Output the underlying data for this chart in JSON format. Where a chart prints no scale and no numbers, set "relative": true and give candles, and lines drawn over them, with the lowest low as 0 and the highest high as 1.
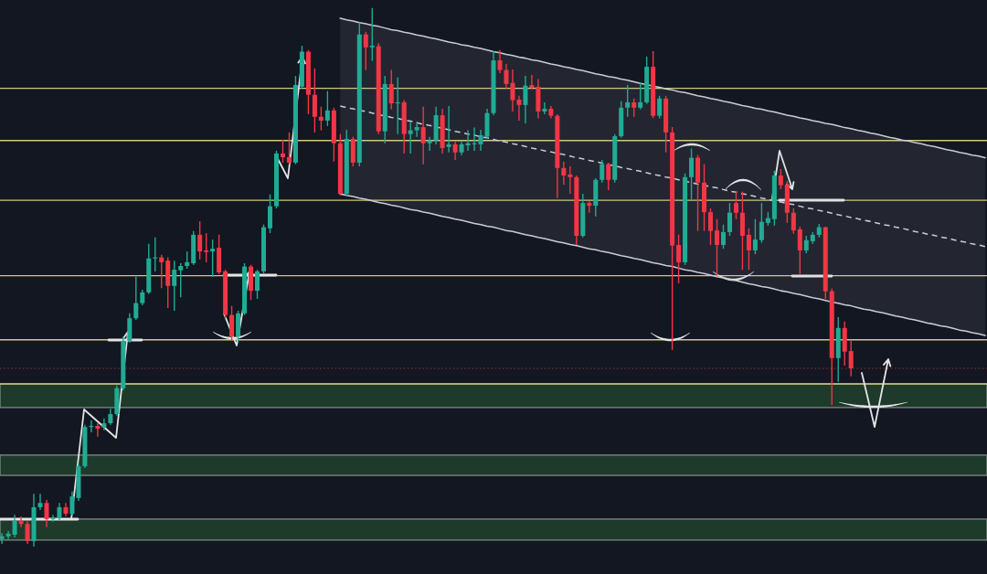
{
  "chart_data": {
    "type": "candlestick",
    "relative": true,
    "tick_labels": false,
    "categories": [
      null,
      null,
      null,
      null,
      null,
      null,
      null,
      null,
      null,
      null,
      null,
      null,
      null,
      null,
      null,
      null,
      null,
      null,
      null,
      null,
      null,
      null,
      null,
      null,
      null,
      null,
      null,
      null,
      null,
      null,
      null,
      null,
      null,
      null,
      null,
      null,
      null,
      null,
      null,
      null,
      null,
      null,
      null,
      null,
      null,
      null,
      null,
      null,
      null,
      null,
      null,
      null,
      null,
      null,
      null,
      null,
      null,
      null,
      null,
      null,
      null,
      null,
      null,
      null,
      null,
      null,
      null,
      null,
      null,
      null,
      null,
      null,
      null,
      null,
      null,
      null,
      null,
      null,
      null,
      null,
      null,
      null,
      null,
      null,
      null,
      null,
      null,
      null,
      null,
      null,
      null,
      null,
      null,
      null,
      null,
      null,
      null,
      null,
      null,
      null,
      null,
      null,
      null,
      null,
      null,
      null,
      null,
      null,
      null,
      null,
      null,
      null,
      null,
      null,
      null,
      null,
      null,
      null,
      null,
      null,
      null,
      null,
      null,
      null,
      null,
      null,
      null,
      null,
      null,
      null,
      null,
      null,
      null,
      null,
      null,
      null,
      null,
      null,
      null,
      null,
      null,
      null,
      null,
      null,
      null,
      null,
      null,
      null,
      null,
      null,
      null,
      null,
      null,
      null,
      null
    ],
    "ohlc": [
      [
        0.014,
        0.025,
        0.005,
        0.019
      ],
      [
        0.019,
        0.029,
        0.014,
        0.024
      ],
      [
        0.022,
        0.059,
        0.017,
        0.048
      ],
      [
        0.048,
        0.056,
        0.036,
        0.042
      ],
      [
        0.042,
        0.048,
        0.005,
        0.01
      ],
      [
        0.01,
        0.098,
        0,
        0.073
      ],
      [
        0.073,
        0.098,
        0.068,
        0.081
      ],
      [
        0.081,
        0.087,
        0.036,
        0.051
      ],
      [
        0.051,
        0.059,
        0.046,
        0.053
      ],
      [
        0.053,
        0.081,
        0.049,
        0.073
      ],
      [
        0.073,
        0.081,
        0.056,
        0.061
      ],
      [
        0.061,
        0.102,
        0.058,
        0.093
      ],
      [
        0.09,
        0.154,
        0.085,
        0.149
      ],
      [
        0.149,
        0.226,
        0.146,
        0.222
      ],
      [
        0.222,
        0.234,
        0.212,
        0.224
      ],
      [
        0.224,
        0.229,
        0.204,
        0.219
      ],
      [
        0.221,
        0.238,
        0.216,
        0.229
      ],
      [
        0.229,
        0.256,
        0.226,
        0.246
      ],
      [
        0.246,
        0.299,
        0.243,
        0.294
      ],
      [
        0.294,
        0.39,
        0.29,
        0.382
      ],
      [
        0.382,
        0.433,
        0.379,
        0.424
      ],
      [
        0.424,
        0.501,
        0.421,
        0.452
      ],
      [
        0.452,
        0.477,
        0.448,
        0.472
      ],
      [
        0.472,
        0.562,
        0.469,
        0.535
      ],
      [
        0.535,
        0.574,
        0.511,
        0.537
      ],
      [
        0.537,
        0.542,
        0.48,
        0.528
      ],
      [
        0.531,
        0.537,
        0.443,
        0.484
      ],
      [
        0.484,
        0.531,
        0.438,
        0.514
      ],
      [
        0.513,
        0.526,
        0.463,
        0.521
      ],
      [
        0.521,
        0.548,
        0.516,
        0.528
      ],
      [
        0.526,
        0.586,
        0.523,
        0.579
      ],
      [
        0.579,
        0.604,
        0.533,
        0.548
      ],
      [
        0.55,
        0.582,
        0.528,
        0.547
      ],
      [
        0.548,
        0.57,
        0.501,
        0.553
      ],
      [
        0.555,
        0.579,
        0.506,
        0.509
      ],
      [
        0.511,
        0.514,
        0.424,
        0.43
      ],
      [
        0.43,
        0.447,
        0.382,
        0.39
      ],
      [
        0.39,
        0.438,
        0.379,
        0.433
      ],
      [
        0.433,
        0.526,
        0.43,
        0.52
      ],
      [
        0.52,
        0.523,
        0.458,
        0.475
      ],
      [
        0.475,
        0.514,
        0.46,
        0.511
      ],
      [
        0.511,
        0.598,
        0.506,
        0.593
      ],
      [
        0.591,
        0.654,
        0.582,
        0.632
      ],
      [
        0.632,
        0.735,
        0.628,
        0.73
      ],
      [
        0.73,
        0.756,
        0.713,
        0.723
      ],
      [
        0.723,
        0.769,
        0.71,
        0.713
      ],
      [
        0.713,
        0.874,
        0.71,
        0.857
      ],
      [
        0.854,
        0.93,
        0.851,
        0.919
      ],
      [
        0.919,
        0.922,
        0.803,
        0.839
      ],
      [
        0.839,
        0.888,
        0.769,
        0.798
      ],
      [
        0.798,
        0.817,
        0.773,
        0.791
      ],
      [
        0.791,
        0.846,
        0.781,
        0.81
      ],
      [
        0.81,
        0.815,
        0.715,
        0.749
      ],
      [
        0.749,
        0.766,
        0.652,
        0.655
      ],
      [
        0.655,
        0.774,
        0.652,
        0.757
      ],
      [
        0.757,
        0.761,
        0.706,
        0.713
      ],
      [
        0.713,
        0.973,
        0.706,
        0.951
      ],
      [
        0.951,
        0.956,
        0.885,
        0.927
      ],
      [
        0.927,
        1,
        0.902,
        0.93
      ],
      [
        0.929,
        0.935,
        0.766,
        0.771
      ],
      [
        0.771,
        0.874,
        0.749,
        0.859
      ],
      [
        0.859,
        0.885,
        0.812,
        0.823
      ],
      [
        0.823,
        0.871,
        0.766,
        0.825
      ],
      [
        0.825,
        0.829,
        0.73,
        0.766
      ],
      [
        0.766,
        0.789,
        0.73,
        0.773
      ],
      [
        0.773,
        0.789,
        0.761,
        0.779
      ],
      [
        0.779,
        0.817,
        0.71,
        0.749
      ],
      [
        0.749,
        0.761,
        0.735,
        0.754
      ],
      [
        0.754,
        0.817,
        0.747,
        0.801
      ],
      [
        0.801,
        0.813,
        0.73,
        0.74
      ],
      [
        0.742,
        0.818,
        0.732,
        0.747
      ],
      [
        0.747,
        0.752,
        0.718,
        0.732
      ],
      [
        0.732,
        0.752,
        0.727,
        0.747
      ],
      [
        0.745,
        0.773,
        0.735,
        0.749
      ],
      [
        0.747,
        0.778,
        0.735,
        0.749
      ],
      [
        0.747,
        0.774,
        0.735,
        0.764
      ],
      [
        0.761,
        0.813,
        0.757,
        0.805
      ],
      [
        0.805,
        0.92,
        0.801,
        0.903
      ],
      [
        0.903,
        0.922,
        0.879,
        0.885
      ],
      [
        0.885,
        0.896,
        0.849,
        0.859
      ],
      [
        0.861,
        0.886,
        0.808,
        0.829
      ],
      [
        0.83,
        0.837,
        0.791,
        0.82
      ],
      [
        0.82,
        0.874,
        0.786,
        0.856
      ],
      [
        0.857,
        0.876,
        0.849,
        0.852
      ],
      [
        0.854,
        0.868,
        0.795,
        0.808
      ],
      [
        0.808,
        0.825,
        0.803,
        0.813
      ],
      [
        0.813,
        0.818,
        0.795,
        0.8
      ],
      [
        0.8,
        0.803,
        0.647,
        0.703
      ],
      [
        0.703,
        0.715,
        0.672,
        0.689
      ],
      [
        0.691,
        0.706,
        0.655,
        0.686
      ],
      [
        0.686,
        0.689,
        0.56,
        0.577
      ],
      [
        0.577,
        0.655,
        0.574,
        0.638
      ],
      [
        0.638,
        0.642,
        0.62,
        0.633
      ],
      [
        0.633,
        0.684,
        0.613,
        0.681
      ],
      [
        0.681,
        0.718,
        0.676,
        0.71
      ],
      [
        0.71,
        0.713,
        0.662,
        0.681
      ],
      [
        0.681,
        0.766,
        0.676,
        0.762
      ],
      [
        0.762,
        0.827,
        0.759,
        0.815
      ],
      [
        0.815,
        0.857,
        0.798,
        0.825
      ],
      [
        0.825,
        0.832,
        0.798,
        0.815
      ],
      [
        0.815,
        0.862,
        0.812,
        0.825
      ],
      [
        0.825,
        0.91,
        0.822,
        0.891
      ],
      [
        0.891,
        0.92,
        0.796,
        0.8
      ],
      [
        0.8,
        0.837,
        0.795,
        0.832
      ],
      [
        0.832,
        0.837,
        0.732,
        0.769
      ],
      [
        0.769,
        0.779,
        0.365,
        0.559
      ],
      [
        0.56,
        0.579,
        0.489,
        0.528
      ],
      [
        0.528,
        0.693,
        0.523,
        0.686
      ],
      [
        0.686,
        0.739,
        0.645,
        0.722
      ],
      [
        0.722,
        0.727,
        0.586,
        0.676
      ],
      [
        0.676,
        0.71,
        0.586,
        0.621
      ],
      [
        0.621,
        0.628,
        0.56,
        0.586
      ],
      [
        0.587,
        0.608,
        0.503,
        0.56
      ],
      [
        0.56,
        0.598,
        0.553,
        0.584
      ],
      [
        0.584,
        0.638,
        0.577,
        0.62
      ],
      [
        0.638,
        0.659,
        0.608,
        0.62
      ],
      [
        0.62,
        0.659,
        0.514,
        0.577
      ],
      [
        0.579,
        0.591,
        0.514,
        0.55
      ],
      [
        0.55,
        0.608,
        0.543,
        0.57
      ],
      [
        0.569,
        0.638,
        0.564,
        0.603
      ],
      [
        0.601,
        0.621,
        0.596,
        0.61
      ],
      [
        0.608,
        0.698,
        0.596,
        0.689
      ],
      [
        0.689,
        0.701,
        0.664,
        0.671
      ],
      [
        0.672,
        0.679,
        0.601,
        0.62
      ],
      [
        0.62,
        0.628,
        0.581,
        0.587
      ],
      [
        0.589,
        0.594,
        0.506,
        0.55
      ],
      [
        0.55,
        0.577,
        0.545,
        0.569
      ],
      [
        0.567,
        0.584,
        0.562,
        0.579
      ],
      [
        0.579,
        0.599,
        0.574,
        0.593
      ],
      [
        0.593,
        0.594,
        0.46,
        0.474
      ],
      [
        0.474,
        0.479,
        0.263,
        0.35
      ],
      [
        0.35,
        0.426,
        0.306,
        0.406
      ],
      [
        0.406,
        0.418,
        0.336,
        0.362
      ],
      [
        0.363,
        0.382,
        0.316,
        0.331
      ],
      null,
      null,
      null,
      null,
      null,
      null,
      null,
      null,
      null,
      null,
      null,
      null,
      null,
      null,
      null,
      null,
      null,
      null,
      null,
      null,
      null
    ],
    "colors": [
      "#22ab94",
      "#22ab94",
      "#22ab94",
      "#f23645",
      "#f23645",
      "#22ab94",
      "#22ab94",
      "#f23645",
      "#22ab94",
      "#22ab94",
      "#f23645",
      "#22ab94",
      "#22ab94",
      "#22ab94",
      "#22ab94",
      "#f23645",
      "#22ab94",
      "#22ab94",
      "#22ab94",
      "#22ab94",
      "#22ab94",
      "#22ab94",
      "#22ab94",
      "#22ab94",
      "#22ab94",
      "#f23645",
      "#f23645",
      "#22ab94",
      "#22ab94",
      "#22ab94",
      "#22ab94",
      "#f23645",
      "#f23645",
      "#22ab94",
      "#f23645",
      "#f23645",
      "#f23645",
      "#22ab94",
      "#22ab94",
      "#f23645",
      "#22ab94",
      "#22ab94",
      "#22ab94",
      "#22ab94",
      "#f23645",
      "#f23645",
      "#22ab94",
      "#22ab94",
      "#f23645",
      "#f23645",
      "#f23645",
      "#22ab94",
      "#f23645",
      "#f23645",
      "#22ab94",
      "#f23645",
      "#22ab94",
      "#f23645",
      "#22ab94",
      "#f23645",
      "#22ab94",
      "#f23645",
      "#22ab94",
      "#f23645",
      "#22ab94",
      "#22ab94",
      "#f23645",
      "#22ab94",
      "#22ab94",
      "#f23645",
      "#22ab94",
      "#f23645",
      "#22ab94",
      "#22ab94",
      "#22ab94",
      "#22ab94",
      "#22ab94",
      "#22ab94",
      "#f23645",
      "#f23645",
      "#f23645",
      "#f23645",
      "#22ab94",
      "#f23645",
      "#f23645",
      "#22ab94",
      "#f23645",
      "#f23645",
      "#f23645",
      "#f23645",
      "#f23645",
      "#22ab94",
      "#f23645",
      "#22ab94",
      "#22ab94",
      "#f23645",
      "#22ab94",
      "#22ab94",
      "#22ab94",
      "#f23645",
      "#22ab94",
      "#22ab94",
      "#f23645",
      "#22ab94",
      "#f23645",
      "#f23645",
      "#f23645",
      "#22ab94",
      "#22ab94",
      "#f23645",
      "#f23645",
      "#f23645",
      "#f23645",
      "#22ab94",
      "#22ab94",
      "#f23645",
      "#f23645",
      "#f23645",
      "#22ab94",
      "#22ab94",
      "#22ab94",
      "#22ab94",
      "#f23645",
      "#f23645",
      "#f23645",
      "#f23645",
      "#22ab94",
      "#22ab94",
      "#22ab94",
      "#f23645",
      "#f23645",
      "#22ab94",
      "#f23645",
      "#f23645",
      null,
      null,
      null,
      null,
      null,
      null,
      null,
      null,
      null,
      null,
      null,
      null,
      null,
      null,
      null,
      null,
      null,
      null,
      null,
      null,
      null
    ],
    "series": [
      {
        "type": "line",
        "color": "#c9ccd4",
        "values": [
          null,
          null,
          null,
          null,
          null,
          null,
          null,
          null,
          null,
          null,
          null,
          null,
          null,
          null,
          null,
          null,
          null,
          null,
          null,
          null,
          null,
          null,
          null,
          null,
          null,
          null,
          null,
          null,
          null,
          null,
          null,
          null,
          null,
          null,
          null,
          null,
          null,
          null,
          null,
          null,
          null,
          null,
          null,
          null,
          null,
          null,
          null,
          null,
          null,
          null,
          null,
          null,
          null,
          0.981,
          0.978,
          0.976,
          0.973,
          0.971,
          0.968,
          0.966,
          0.963,
          0.96,
          0.958,
          0.955,
          0.953,
          0.95,
          0.948,
          0.945,
          0.943,
          0.94,
          0.937,
          0.935,
          0.932,
          0.93,
          0.927,
          0.925,
          0.922,
          0.919,
          0.917,
          0.914,
          0.912,
          0.909,
          0.907,
          0.904,
          0.902,
          0.899,
          0.896,
          0.894,
          0.891,
          0.889,
          0.886,
          0.884,
          0.881,
          0.878,
          0.876,
          0.873,
          0.871,
          0.868,
          0.866,
          0.863,
          0.86,
          0.858,
          0.855,
          0.853,
          0.85,
          0.848,
          0.845,
          0.843,
          0.84,
          0.837,
          0.835,
          0.832,
          0.83,
          0.827,
          0.825,
          0.822,
          0.819,
          0.817,
          0.814,
          0.812,
          0.809,
          0.807,
          0.804,
          0.801,
          0.799,
          0.796,
          0.794,
          0.791,
          0.789,
          0.786,
          0.784,
          0.781,
          0.778,
          0.776,
          0.773,
          0.771,
          0.768,
          0.766,
          0.763,
          0.76,
          0.758,
          0.755,
          0.753,
          0.75,
          0.748,
          0.745,
          0.743,
          0.74,
          0.737,
          0.735,
          0.732,
          0.73,
          0.727,
          0.725,
          0.722
        ]
      },
      {
        "type": "line",
        "color": "#c9ccd4",
        "values": [
          null,
          null,
          null,
          null,
          null,
          null,
          null,
          null,
          null,
          null,
          null,
          null,
          null,
          null,
          null,
          null,
          null,
          null,
          null,
          null,
          null,
          null,
          null,
          null,
          null,
          null,
          null,
          null,
          null,
          null,
          null,
          null,
          null,
          null,
          null,
          null,
          null,
          null,
          null,
          null,
          null,
          null,
          null,
          null,
          null,
          null,
          null,
          null,
          null,
          null,
          null,
          null,
          null,
          0.655,
          0.652,
          0.65,
          0.647,
          0.645,
          0.642,
          0.639,
          0.637,
          0.634,
          0.632,
          0.629,
          0.626,
          0.624,
          0.621,
          0.619,
          0.616,
          0.613,
          0.611,
          0.608,
          0.606,
          0.603,
          0.6,
          0.598,
          0.595,
          0.593,
          0.59,
          0.587,
          0.585,
          0.582,
          0.579,
          0.577,
          0.574,
          0.572,
          0.569,
          0.566,
          0.564,
          0.561,
          0.559,
          0.556,
          0.553,
          0.551,
          0.548,
          0.546,
          0.543,
          0.54,
          0.538,
          0.535,
          0.533,
          0.53,
          0.527,
          0.525,
          0.522,
          0.52,
          0.517,
          0.514,
          0.512,
          0.509,
          0.507,
          0.504,
          0.501,
          0.499,
          0.496,
          0.494,
          0.491,
          0.488,
          0.486,
          0.483,
          0.481,
          0.478,
          0.475,
          0.473,
          0.47,
          0.468,
          0.465,
          0.462,
          0.46,
          0.457,
          0.454,
          0.452,
          0.449,
          0.447,
          0.444,
          0.441,
          0.439,
          0.436,
          0.434,
          0.431,
          0.428,
          0.426,
          0.423,
          0.421,
          0.418,
          0.415,
          0.413,
          0.41,
          0.408,
          0.405,
          0.402,
          0.4,
          0.397,
          0.395,
          0.392
        ]
      },
      {
        "type": "line",
        "color": "#c9ccd4",
        "line_style": "dashed",
        "values": [
          null,
          null,
          null,
          null,
          null,
          null,
          null,
          null,
          null,
          null,
          null,
          null,
          null,
          null,
          null,
          null,
          null,
          null,
          null,
          null,
          null,
          null,
          null,
          null,
          null,
          null,
          null,
          null,
          null,
          null,
          null,
          null,
          null,
          null,
          null,
          null,
          null,
          null,
          null,
          null,
          null,
          null,
          null,
          null,
          null,
          null,
          null,
          null,
          null,
          null,
          null,
          null,
          null,
          0.818,
          0.815,
          0.813,
          0.81,
          0.808,
          0.805,
          0.802,
          0.8,
          0.797,
          0.795,
          0.792,
          0.79,
          0.787,
          0.784,
          0.782,
          0.779,
          0.777,
          0.774,
          0.771,
          0.769,
          0.766,
          0.764,
          0.761,
          0.759,
          0.756,
          0.753,
          0.751,
          0.748,
          0.746,
          0.743,
          0.74,
          0.738,
          0.735,
          0.733,
          0.73,
          0.728,
          0.725,
          0.722,
          0.72,
          0.717,
          0.715,
          0.712,
          0.709,
          0.707,
          0.704,
          0.702,
          0.699,
          0.697,
          0.694,
          0.691,
          0.689,
          0.686,
          0.684,
          0.681,
          0.678,
          0.676,
          0.673,
          0.671,
          0.668,
          0.666,
          0.663,
          0.66,
          0.658,
          0.655,
          0.653,
          0.65,
          0.647,
          0.645,
          0.642,
          0.64,
          0.637,
          0.635,
          0.632,
          0.629,
          0.627,
          0.624,
          0.622,
          0.619,
          0.616,
          0.614,
          0.611,
          0.609,
          0.606,
          0.604,
          0.601,
          0.598,
          0.596,
          0.593,
          0.591,
          0.588,
          0.585,
          0.583,
          0.58,
          0.578,
          0.575,
          0.573,
          0.57,
          0.567,
          0.565,
          0.562,
          0.56,
          0.557
        ],
        "lower": [
          null,
          null,
          null,
          null,
          null,
          null,
          null,
          null,
          null,
          null,
          null,
          null,
          null,
          null,
          null,
          null,
          null,
          null,
          null,
          null,
          null,
          null,
          null,
          null,
          null,
          null,
          null,
          null,
          null,
          null,
          null,
          null,
          null,
          null,
          null,
          null,
          null,
          null,
          null,
          null,
          null,
          null,
          null,
          null,
          null,
          null,
          null,
          null,
          null,
          null,
          null,
          null,
          null,
          0.655,
          0.652,
          0.65,
          0.647,
          0.645,
          0.642,
          0.639,
          0.637,
          0.634,
          0.632,
          0.629,
          0.626,
          0.624,
          0.621,
          0.619,
          0.616,
          0.613,
          0.611,
          0.608,
          0.606,
          0.603,
          0.6,
          0.598,
          0.595,
          0.593,
          0.59,
          0.587,
          0.585,
          0.582,
          0.579,
          0.577,
          0.574,
          0.572,
          0.569,
          0.566,
          0.564,
          0.561,
          0.559,
          0.556,
          0.553,
          0.551,
          0.548,
          0.546,
          0.543,
          0.54,
          0.538,
          0.535,
          0.533,
          0.53,
          0.527,
          0.525,
          0.522,
          0.52,
          0.517,
          0.514,
          0.512,
          0.509,
          0.507,
          0.504,
          0.501,
          0.499,
          0.496,
          0.494,
          0.491,
          0.488,
          0.486,
          0.483,
          0.481,
          0.478,
          0.475,
          0.473,
          0.47,
          0.468,
          0.465,
          0.462,
          0.46,
          0.457,
          0.454,
          0.452,
          0.449,
          0.447,
          0.444,
          0.441,
          0.439,
          0.436,
          0.434,
          0.431,
          0.428,
          0.426,
          0.423,
          0.421,
          0.418,
          0.415,
          0.413,
          0.41,
          0.408,
          0.405,
          0.402,
          0.4,
          0.397,
          0.395,
          0.392
        ],
        "upper": [
          null,
          null,
          null,
          null,
          null,
          null,
          null,
          null,
          null,
          null,
          null,
          null,
          null,
          null,
          null,
          null,
          null,
          null,
          null,
          null,
          null,
          null,
          null,
          null,
          null,
          null,
          null,
          null,
          null,
          null,
          null,
          null,
          null,
          null,
          null,
          null,
          null,
          null,
          null,
          null,
          null,
          null,
          null,
          null,
          null,
          null,
          null,
          null,
          null,
          null,
          null,
          null,
          null,
          0.981,
          0.978,
          0.976,
          0.973,
          0.971,
          0.968,
          0.966,
          0.963,
          0.96,
          0.958,
          0.955,
          0.953,
          0.95,
          0.948,
          0.945,
          0.943,
          0.94,
          0.937,
          0.935,
          0.932,
          0.93,
          0.927,
          0.925,
          0.922,
          0.919,
          0.917,
          0.914,
          0.912,
          0.909,
          0.907,
          0.904,
          0.902,
          0.899,
          0.896,
          0.894,
          0.891,
          0.889,
          0.886,
          0.884,
          0.881,
          0.878,
          0.876,
          0.873,
          0.871,
          0.868,
          0.866,
          0.863,
          0.86,
          0.858,
          0.855,
          0.853,
          0.85,
          0.848,
          0.845,
          0.843,
          0.84,
          0.837,
          0.835,
          0.832,
          0.83,
          0.827,
          0.825,
          0.822,
          0.819,
          0.817,
          0.814,
          0.812,
          0.809,
          0.807,
          0.804,
          0.801,
          0.799,
          0.796,
          0.794,
          0.791,
          0.789,
          0.786,
          0.784,
          0.781,
          0.778,
          0.776,
          0.773,
          0.771,
          0.768,
          0.766,
          0.763,
          0.76,
          0.758,
          0.755,
          0.753,
          0.75,
          0.748,
          0.745,
          0.743,
          0.74,
          0.737,
          0.735,
          0.732,
          0.73,
          0.727,
          0.725,
          0.722
        ]
      }
    ],
    "ref_lines": [
      {
        "axis": "y",
        "value": 0.851,
        "color": "#cfc97a"
      },
      {
        "axis": "y",
        "value": 0.754,
        "color": "#cfc97a"
      },
      {
        "axis": "y",
        "value": 0.643,
        "color": "#cfc97a"
      },
      {
        "axis": "y",
        "value": 0.503,
        "color": "#cfc97a"
      },
      {
        "axis": "y",
        "value": 0.384,
        "color": "#cfc97a"
      },
      {
        "axis": "y",
        "value": 0.331,
        "color": "#6e2b36",
        "line_style": "dotted"
      },
      {
        "axis": "y",
        "value": 0.302,
        "color": "#cfc97a"
      }
    ],
    "bands": [
      {
        "axis": "y",
        "from": 0.258,
        "to": 0.302,
        "color": "#1e3a2a"
      },
      {
        "axis": "y",
        "from": 0.132,
        "to": 0.17,
        "color": "#1e3a2a"
      },
      {
        "axis": "y",
        "from": 0.012,
        "to": 0.051,
        "color": "#1e3a2a"
      }
    ]
  }
}
